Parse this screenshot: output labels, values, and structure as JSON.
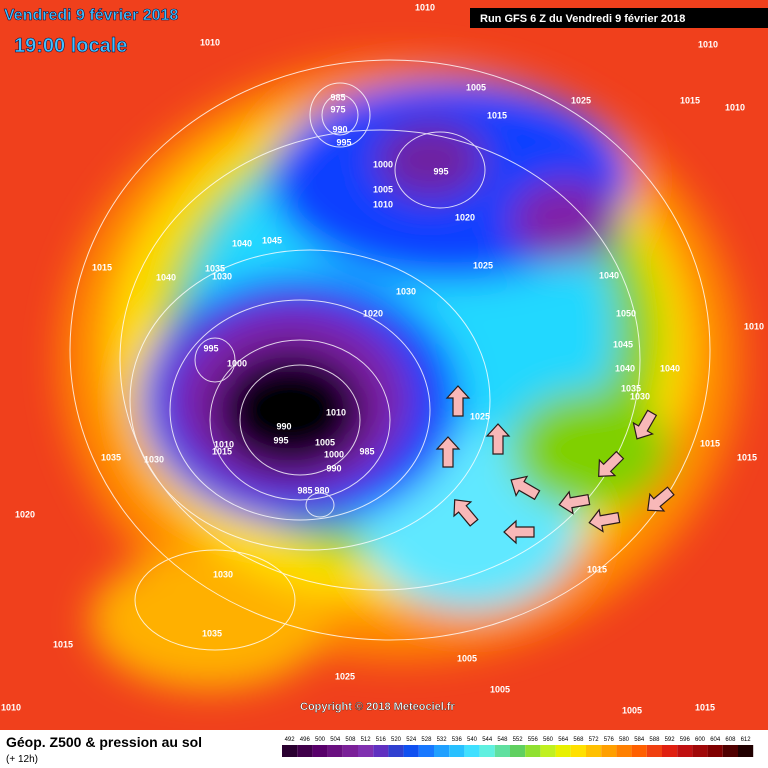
{
  "header": {
    "date": "Vendredi 9 février 2018",
    "time": "19:00 locale",
    "run": "Run GFS 6 Z du Vendredi 9 février 2018"
  },
  "footer": {
    "title": "Géop. Z500 & pression au sol",
    "lead": "(+ 12h)",
    "copyright": "Copyright © 2018 Meteociel.fr"
  },
  "colorbar": {
    "values": [
      492,
      496,
      500,
      504,
      508,
      512,
      516,
      520,
      524,
      528,
      532,
      536,
      540,
      544,
      548,
      552,
      556,
      560,
      564,
      568,
      572,
      576,
      580,
      584,
      588,
      592,
      596,
      600,
      604,
      608,
      612
    ]
  },
  "isobar_labels": [
    "1010",
    "1010",
    "1010",
    "1010",
    "1015",
    "1025",
    "1005",
    "1015",
    "985",
    "975",
    "990",
    "995",
    "1000",
    "995",
    "1005",
    "1010",
    "1020",
    "1040",
    "1045",
    "1025",
    "1040",
    "1015",
    "1040",
    "1035",
    "1030",
    "1030",
    "1020",
    "1050",
    "1010",
    "1045",
    "995",
    "1000",
    "1040",
    "1040",
    "1035",
    "1030",
    "1010",
    "990",
    "995",
    "1025",
    "1005",
    "1010",
    "1015",
    "985",
    "1000",
    "990",
    "1035",
    "1030",
    "1015",
    "1015",
    "985",
    "980",
    "1020",
    "1015",
    "1030",
    "1035",
    "1015",
    "1005",
    "1025",
    "1005",
    "1010",
    "1005",
    "1015"
  ]
}
